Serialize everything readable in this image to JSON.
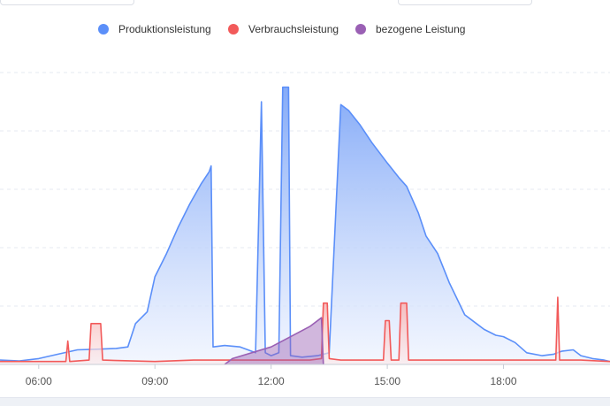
{
  "chart_data": {
    "type": "area",
    "title": "",
    "xlabel": "",
    "ylabel": "",
    "x_unit": "hours",
    "xlim": [
      5.0,
      20.75
    ],
    "ylim": [
      0,
      100
    ],
    "x_ticks": [
      {
        "x": 6,
        "label": "06:00"
      },
      {
        "x": 9,
        "label": "09:00"
      },
      {
        "x": 12,
        "label": "12:00"
      },
      {
        "x": 15,
        "label": "15:00"
      },
      {
        "x": 18,
        "label": "18:00"
      }
    ],
    "y_gridlines": [
      0,
      20,
      40,
      60,
      80,
      100
    ],
    "legend_position": "top",
    "series": [
      {
        "name": "Produktionsleistung",
        "color": "#5b8ff9",
        "points": [
          [
            5.0,
            1.5
          ],
          [
            5.5,
            1.2
          ],
          [
            6.0,
            2.0
          ],
          [
            6.5,
            3.5
          ],
          [
            7.0,
            5.0
          ],
          [
            7.5,
            5.2
          ],
          [
            8.0,
            5.5
          ],
          [
            8.3,
            6.0
          ],
          [
            8.5,
            14
          ],
          [
            8.8,
            18
          ],
          [
            9.0,
            30
          ],
          [
            9.3,
            38
          ],
          [
            9.6,
            47
          ],
          [
            9.9,
            55
          ],
          [
            10.2,
            62
          ],
          [
            10.4,
            66
          ],
          [
            10.45,
            68
          ],
          [
            10.5,
            6.0
          ],
          [
            10.8,
            6.5
          ],
          [
            11.2,
            6.0
          ],
          [
            11.4,
            5.0
          ],
          [
            11.6,
            4.0
          ],
          [
            11.75,
            90
          ],
          [
            11.85,
            4.0
          ],
          [
            12.0,
            3.0
          ],
          [
            12.2,
            4.0
          ],
          [
            12.3,
            95
          ],
          [
            12.45,
            95
          ],
          [
            12.5,
            3.0
          ],
          [
            12.8,
            2.5
          ],
          [
            13.2,
            3.0
          ],
          [
            13.5,
            4.0
          ],
          [
            13.8,
            89
          ],
          [
            14.0,
            87
          ],
          [
            14.3,
            82
          ],
          [
            14.6,
            76
          ],
          [
            15.0,
            69
          ],
          [
            15.3,
            64
          ],
          [
            15.5,
            61
          ],
          [
            15.8,
            52
          ],
          [
            16.0,
            44
          ],
          [
            16.3,
            38
          ],
          [
            16.6,
            28
          ],
          [
            17.0,
            17
          ],
          [
            17.3,
            14
          ],
          [
            17.5,
            12
          ],
          [
            17.8,
            10
          ],
          [
            18.0,
            9.5
          ],
          [
            18.3,
            7.5
          ],
          [
            18.6,
            4.0
          ],
          [
            19.0,
            3.0
          ],
          [
            19.3,
            3.5
          ],
          [
            19.5,
            4.5
          ],
          [
            19.8,
            5.0
          ],
          [
            20.0,
            3.0
          ],
          [
            20.3,
            2.0
          ],
          [
            20.6,
            1.5
          ],
          [
            20.75,
            1.0
          ]
        ]
      },
      {
        "name": "Verbrauchsleistung",
        "color": "#f25a5a",
        "points": [
          [
            5.0,
            1.0
          ],
          [
            6.7,
            1.0
          ],
          [
            6.75,
            8.0
          ],
          [
            6.8,
            1.0
          ],
          [
            7.3,
            1.5
          ],
          [
            7.35,
            14
          ],
          [
            7.6,
            14
          ],
          [
            7.65,
            1.5
          ],
          [
            9.0,
            1.0
          ],
          [
            10.0,
            1.5
          ],
          [
            11.0,
            1.5
          ],
          [
            12.0,
            1.5
          ],
          [
            13.0,
            1.5
          ],
          [
            13.3,
            2.0
          ],
          [
            13.35,
            21
          ],
          [
            13.45,
            21
          ],
          [
            13.5,
            2.0
          ],
          [
            13.8,
            1.5
          ],
          [
            14.2,
            1.5
          ],
          [
            14.9,
            1.5
          ],
          [
            14.95,
            15
          ],
          [
            15.05,
            15
          ],
          [
            15.1,
            1.5
          ],
          [
            15.3,
            1.5
          ],
          [
            15.35,
            21
          ],
          [
            15.5,
            21
          ],
          [
            15.55,
            1.5
          ],
          [
            17.0,
            1.5
          ],
          [
            18.0,
            1.5
          ],
          [
            19.0,
            1.5
          ],
          [
            19.35,
            1.5
          ],
          [
            19.4,
            23
          ],
          [
            19.45,
            1.5
          ],
          [
            20.0,
            1.5
          ],
          [
            20.75,
            1.0
          ]
        ]
      },
      {
        "name": "bezogene Leistung",
        "color": "#9a60b4",
        "points": [
          [
            10.8,
            0.0
          ],
          [
            11.0,
            2.0
          ],
          [
            12.0,
            6.0
          ],
          [
            13.0,
            13
          ],
          [
            13.3,
            16
          ],
          [
            13.35,
            0.0
          ]
        ]
      }
    ]
  },
  "colors": {
    "production_fill_top": "#7ea6f7",
    "production_fill_bottom": "#eef3fe",
    "consumption_fill": "#f6b4b4",
    "grid": "#e6e9f0"
  }
}
